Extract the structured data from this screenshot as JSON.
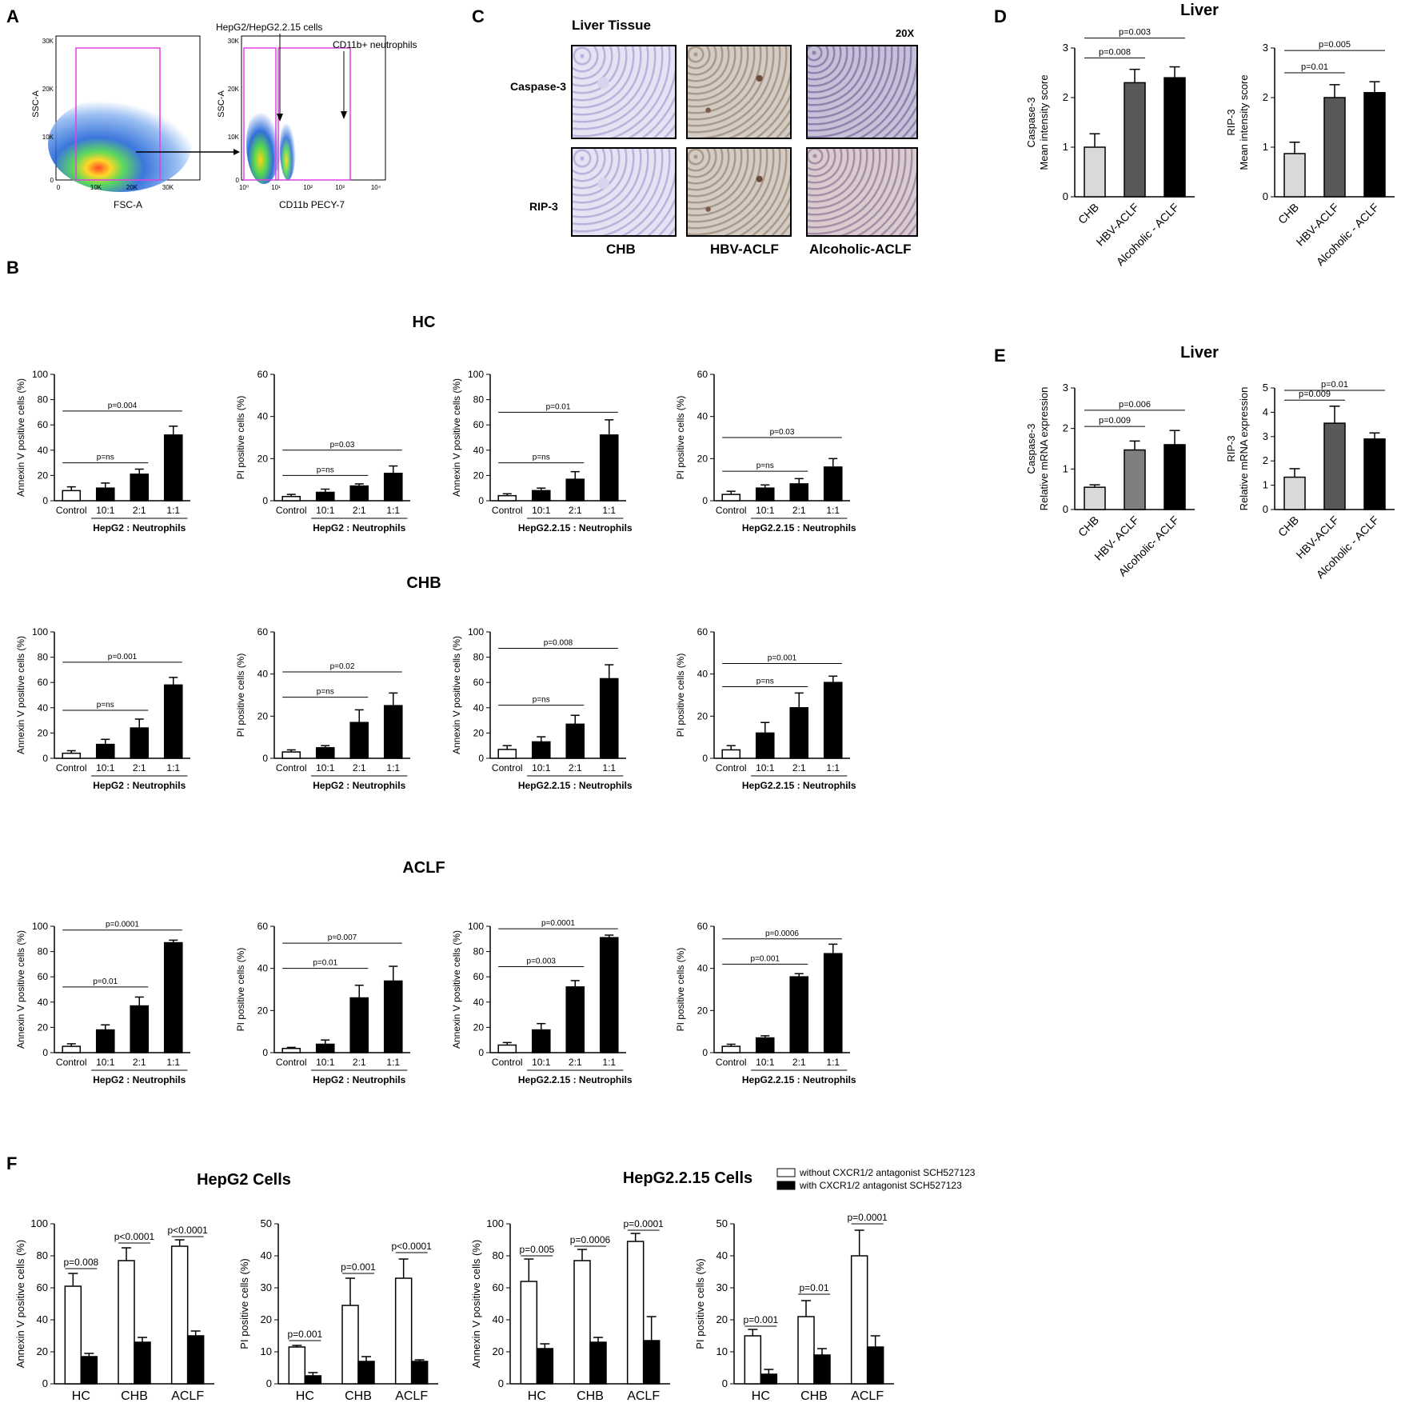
{
  "panels": {
    "A": "A",
    "B": "B",
    "C": "C",
    "D": "D",
    "E": "E",
    "F": "F"
  },
  "flow": {
    "left_y": "SSC-A",
    "left_x": "FSC-A",
    "left_yticks": [
      "30K",
      "20K",
      "10K",
      "0"
    ],
    "left_xticks": [
      "0",
      "10K",
      "20K",
      "30K"
    ],
    "right_y": "SSC-A",
    "right_x": "CD11b PECY-7",
    "right_yticks": [
      "30K",
      "20K",
      "10K",
      "0"
    ],
    "right_xticks": [
      "10⁰",
      "10¹",
      "10²",
      "10³",
      "10⁴"
    ],
    "label_hepg2": "HepG2/HepG2.2.15 cells",
    "label_neut": "CD11b+ neutrophils"
  },
  "histo": {
    "title": "Liver Tissue",
    "mag": "20X",
    "rows": [
      "Caspase-3",
      "RIP-3"
    ],
    "cols": [
      "CHB",
      "HBV-ACLF",
      "Alcoholic-ACLF"
    ]
  },
  "titles": {
    "D": "Liver",
    "E": "Liver",
    "HC": "HC",
    "CHB": "CHB",
    "ACLF": "ACLF",
    "F_hepg2": "HepG2 Cells",
    "F_hepg215": "HepG2.2.15 Cells"
  },
  "legendF": {
    "without": "without CXCR1/2 antagonist SCH527123",
    "with": "with CXCR1/2 antagonist SCH527123"
  },
  "chart_data": [
    {
      "id": "D1",
      "type": "bar",
      "categories": [
        "CHB",
        "HBV-ACLF",
        "Alcoholic - ACLF"
      ],
      "values": [
        1.0,
        2.3,
        2.4
      ],
      "errors": [
        0.27,
        0.27,
        0.22
      ],
      "colors": [
        "#d9d9d9",
        "#595959",
        "#000000"
      ],
      "ylabel": [
        "Caspase-3",
        "Mean intensity score"
      ],
      "ylim": [
        0,
        3
      ],
      "yticks": [
        0,
        1,
        2,
        3
      ],
      "sig": [
        {
          "a": 0,
          "b": 1,
          "y": 2.8,
          "label": "p=0.008"
        },
        {
          "a": 0,
          "b": 2,
          "y": 3.2,
          "label": "p=0.003"
        }
      ]
    },
    {
      "id": "D2",
      "type": "bar",
      "categories": [
        "CHB",
        "HBV-ACLF",
        "Alcoholic - ACLF"
      ],
      "values": [
        0.87,
        2.0,
        2.1
      ],
      "errors": [
        0.23,
        0.26,
        0.22
      ],
      "colors": [
        "#d9d9d9",
        "#595959",
        "#000000"
      ],
      "ylabel": [
        "RIP-3",
        "Mean intensity score"
      ],
      "ylim": [
        0,
        3
      ],
      "yticks": [
        0,
        1,
        2,
        3
      ],
      "sig": [
        {
          "a": 0,
          "b": 1,
          "y": 2.5,
          "label": "p=0.01"
        },
        {
          "a": 0,
          "b": 2,
          "y": 2.95,
          "label": "p=0.005"
        }
      ]
    },
    {
      "id": "E1",
      "type": "bar",
      "categories": [
        "CHB",
        "HBV- ACLF",
        "Alcoholic- ACLF"
      ],
      "values": [
        0.55,
        1.47,
        1.6
      ],
      "errors": [
        0.06,
        0.22,
        0.35
      ],
      "colors": [
        "#d9d9d9",
        "#7f7f7f",
        "#000000"
      ],
      "ylabel": [
        "Caspase-3",
        "Relative mRNA expression"
      ],
      "ylim": [
        0,
        3
      ],
      "yticks": [
        0,
        1,
        2,
        3
      ],
      "sig": [
        {
          "a": 0,
          "b": 1,
          "y": 2.05,
          "label": "p=0.009"
        },
        {
          "a": 0,
          "b": 2,
          "y": 2.45,
          "label": "p=0.006"
        }
      ]
    },
    {
      "id": "E2",
      "type": "bar",
      "categories": [
        "CHB",
        "HBV-ACLF",
        "Alcoholic - ACLF"
      ],
      "values": [
        1.33,
        3.55,
        2.9
      ],
      "errors": [
        0.35,
        0.7,
        0.25
      ],
      "colors": [
        "#d9d9d9",
        "#595959",
        "#000000"
      ],
      "ylabel": [
        "RIP-3",
        "Relative mRNA expression"
      ],
      "ylim": [
        0,
        5
      ],
      "yticks": [
        0,
        1,
        2,
        3,
        4,
        5
      ],
      "sig": [
        {
          "a": 0,
          "b": 1,
          "y": 4.5,
          "label": "p=0.009"
        },
        {
          "a": 0,
          "b": 2,
          "y": 4.9,
          "label": "p=0.01"
        }
      ]
    },
    {
      "id": "HC1",
      "type": "bar",
      "categories": [
        "Control",
        "10:1",
        "2:1",
        "1:1"
      ],
      "values": [
        8,
        10,
        21,
        52
      ],
      "errors": [
        3,
        4,
        4,
        7
      ],
      "ylabel": [
        "Annexin V positive cells (%)"
      ],
      "ylim": [
        0,
        100
      ],
      "yticks": [
        0,
        20,
        40,
        60,
        80,
        100
      ],
      "group": "HepG2 : Neutrophils",
      "sig": [
        {
          "a": 0,
          "b": 2,
          "y": 30,
          "label": "p=ns"
        },
        {
          "a": 0,
          "b": 3,
          "y": 71,
          "label": "p=0.004"
        }
      ]
    },
    {
      "id": "HC2",
      "type": "bar",
      "categories": [
        "Control",
        "10:1",
        "2:1",
        "1:1"
      ],
      "values": [
        2,
        4,
        7,
        13
      ],
      "errors": [
        1,
        1.5,
        1,
        3.5
      ],
      "ylabel": [
        "PI positive cells (%)"
      ],
      "ylim": [
        0,
        60
      ],
      "yticks": [
        0,
        20,
        40,
        60
      ],
      "group": "HepG2 : Neutrophils",
      "sig": [
        {
          "a": 0,
          "b": 2,
          "y": 12,
          "label": "p=ns"
        },
        {
          "a": 0,
          "b": 3,
          "y": 24,
          "label": "p=0.03"
        }
      ]
    },
    {
      "id": "HC3",
      "type": "bar",
      "categories": [
        "Control",
        "10:1",
        "2:1",
        "1:1"
      ],
      "values": [
        4,
        8,
        17,
        52
      ],
      "errors": [
        1.5,
        2,
        6,
        12
      ],
      "ylabel": [
        "Annexin V positive cells (%)"
      ],
      "ylim": [
        0,
        100
      ],
      "yticks": [
        0,
        20,
        40,
        60,
        80,
        100
      ],
      "group": "HepG2.2.15 : Neutrophils",
      "sig": [
        {
          "a": 0,
          "b": 2,
          "y": 30,
          "label": "p=ns"
        },
        {
          "a": 0,
          "b": 3,
          "y": 70,
          "label": "p=0.01"
        }
      ]
    },
    {
      "id": "HC4",
      "type": "bar",
      "categories": [
        "Control",
        "10:1",
        "2:1",
        "1:1"
      ],
      "values": [
        3,
        6,
        8,
        16
      ],
      "errors": [
        1.5,
        1.5,
        2.5,
        4
      ],
      "ylabel": [
        "PI positive cells (%)"
      ],
      "ylim": [
        0,
        60
      ],
      "yticks": [
        0,
        20,
        40,
        60
      ],
      "group": "HepG2.2.15 : Neutrophils",
      "sig": [
        {
          "a": 0,
          "b": 2,
          "y": 14,
          "label": "p=ns"
        },
        {
          "a": 0,
          "b": 3,
          "y": 30,
          "label": "p=0.03"
        }
      ]
    },
    {
      "id": "CHB1",
      "type": "bar",
      "categories": [
        "Control",
        "10:1",
        "2:1",
        "1:1"
      ],
      "values": [
        4,
        11,
        24,
        58
      ],
      "errors": [
        2,
        4,
        7,
        6
      ],
      "ylabel": [
        "Annexin V positive cells (%)"
      ],
      "ylim": [
        0,
        100
      ],
      "yticks": [
        0,
        20,
        40,
        60,
        80,
        100
      ],
      "group": "HepG2 : Neutrophils",
      "sig": [
        {
          "a": 0,
          "b": 2,
          "y": 38,
          "label": "p=ns"
        },
        {
          "a": 0,
          "b": 3,
          "y": 76,
          "label": "p=0.001"
        }
      ]
    },
    {
      "id": "CHB2",
      "type": "bar",
      "categories": [
        "Control",
        "10:1",
        "2:1",
        "1:1"
      ],
      "values": [
        3,
        5,
        17,
        25
      ],
      "errors": [
        1,
        1,
        6,
        6
      ],
      "ylabel": [
        "PI positive cells (%)"
      ],
      "ylim": [
        0,
        60
      ],
      "yticks": [
        0,
        20,
        40,
        60
      ],
      "group": "HepG2 : Neutrophils",
      "sig": [
        {
          "a": 0,
          "b": 2,
          "y": 29,
          "label": "p=ns"
        },
        {
          "a": 0,
          "b": 3,
          "y": 41,
          "label": "p=0.02"
        }
      ]
    },
    {
      "id": "CHB3",
      "type": "bar",
      "categories": [
        "Control",
        "10:1",
        "2:1",
        "1:1"
      ],
      "values": [
        7,
        13,
        27,
        63
      ],
      "errors": [
        3,
        4,
        7,
        11
      ],
      "ylabel": [
        "Annexin V positive cells (%)"
      ],
      "ylim": [
        0,
        100
      ],
      "yticks": [
        0,
        20,
        40,
        60,
        80,
        100
      ],
      "group": "HepG2.2.15 : Neutrophils",
      "sig": [
        {
          "a": 0,
          "b": 2,
          "y": 42,
          "label": "p=ns"
        },
        {
          "a": 0,
          "b": 3,
          "y": 87,
          "label": "p=0.008"
        }
      ]
    },
    {
      "id": "CHB4",
      "type": "bar",
      "categories": [
        "Control",
        "10:1",
        "2:1",
        "1:1"
      ],
      "values": [
        4,
        12,
        24,
        36
      ],
      "errors": [
        2,
        5,
        7,
        3
      ],
      "ylabel": [
        "PI positive cells (%)"
      ],
      "ylim": [
        0,
        60
      ],
      "yticks": [
        0,
        20,
        40,
        60
      ],
      "group": "HepG2.2.15 : Neutrophils",
      "sig": [
        {
          "a": 0,
          "b": 2,
          "y": 34,
          "label": "p=ns"
        },
        {
          "a": 0,
          "b": 3,
          "y": 45,
          "label": "p=0.001"
        }
      ]
    },
    {
      "id": "ACLF1",
      "type": "bar",
      "categories": [
        "Control",
        "10:1",
        "2:1",
        "1:1"
      ],
      "values": [
        5,
        18,
        37,
        87
      ],
      "errors": [
        2,
        4,
        7,
        2
      ],
      "ylabel": [
        "Annexin V positive cells (%)"
      ],
      "ylim": [
        0,
        100
      ],
      "yticks": [
        0,
        20,
        40,
        60,
        80,
        100
      ],
      "group": "HepG2 : Neutrophils",
      "sig": [
        {
          "a": 0,
          "b": 2,
          "y": 52,
          "label": "p=0.01"
        },
        {
          "a": 0,
          "b": 3,
          "y": 97,
          "label": "p=0.0001"
        }
      ]
    },
    {
      "id": "ACLF2",
      "type": "bar",
      "categories": [
        "Control",
        "10:1",
        "2:1",
        "1:1"
      ],
      "values": [
        2,
        4,
        26,
        34
      ],
      "errors": [
        0.5,
        2,
        6,
        7
      ],
      "ylabel": [
        "PI positive cells (%)"
      ],
      "ylim": [
        0,
        60
      ],
      "yticks": [
        0,
        20,
        40,
        60
      ],
      "group": "HepG2 : Neutrophils",
      "sig": [
        {
          "a": 0,
          "b": 2,
          "y": 40,
          "label": "p=0.01"
        },
        {
          "a": 0,
          "b": 3,
          "y": 52,
          "label": "p=0.007"
        }
      ]
    },
    {
      "id": "ACLF3",
      "type": "bar",
      "categories": [
        "Control",
        "10:1",
        "2:1",
        "1:1"
      ],
      "values": [
        6,
        18,
        52,
        91
      ],
      "errors": [
        2,
        5,
        5,
        2
      ],
      "ylabel": [
        "Annexin V positive cells (%)"
      ],
      "ylim": [
        0,
        100
      ],
      "yticks": [
        0,
        20,
        40,
        60,
        80,
        100
      ],
      "group": "HepG2.2.15 : Neutrophils",
      "sig": [
        {
          "a": 0,
          "b": 2,
          "y": 68,
          "label": "p=0.003"
        },
        {
          "a": 0,
          "b": 3,
          "y": 98,
          "label": "p=0.0001"
        }
      ]
    },
    {
      "id": "ACLF4",
      "type": "bar",
      "categories": [
        "Control",
        "10:1",
        "2:1",
        "1:1"
      ],
      "values": [
        3,
        7,
        36,
        47
      ],
      "errors": [
        1,
        1,
        1.5,
        4.5
      ],
      "ylabel": [
        "PI positive cells (%)"
      ],
      "ylim": [
        0,
        60
      ],
      "yticks": [
        0,
        20,
        40,
        60
      ],
      "group": "HepG2.2.15 : Neutrophils",
      "sig": [
        {
          "a": 0,
          "b": 2,
          "y": 42,
          "label": "p=0.001"
        },
        {
          "a": 0,
          "b": 3,
          "y": 54,
          "label": "p=0.0006"
        }
      ]
    },
    {
      "id": "F1",
      "type": "bar-grouped",
      "categories": [
        "HC",
        "CHB",
        "ACLF"
      ],
      "series": [
        {
          "name": "without CXCR1/2 antagonist SCH527123",
          "values": [
            61,
            77,
            86
          ],
          "errors": [
            8,
            8,
            4
          ]
        },
        {
          "name": "with CXCR1/2 antagonist SCH527123",
          "values": [
            17,
            26,
            30
          ],
          "errors": [
            2,
            3,
            3
          ]
        }
      ],
      "ylabel": [
        "Annexin V positive  cells (%)"
      ],
      "ylim": [
        0,
        100
      ],
      "yticks": [
        0,
        20,
        40,
        60,
        80,
        100
      ],
      "sig": [
        {
          "g": 0,
          "y": 72,
          "label": "p=0.008"
        },
        {
          "g": 1,
          "y": 88,
          "label": "p<0.0001"
        },
        {
          "g": 2,
          "y": 92,
          "label": "p<0.0001"
        }
      ]
    },
    {
      "id": "F2",
      "type": "bar-grouped",
      "categories": [
        "HC",
        "CHB",
        "ACLF"
      ],
      "series": [
        {
          "name": "without CXCR1/2 antagonist SCH527123",
          "values": [
            11.5,
            24.5,
            33
          ],
          "errors": [
            0.5,
            8.5,
            6
          ]
        },
        {
          "name": "with CXCR1/2 antagonist SCH527123",
          "values": [
            2.5,
            7,
            7
          ],
          "errors": [
            1,
            1.5,
            0.5
          ]
        }
      ],
      "ylabel": [
        "PI positive cells (%)"
      ],
      "ylim": [
        0,
        50
      ],
      "yticks": [
        0,
        10,
        20,
        30,
        40,
        50
      ],
      "sig": [
        {
          "g": 0,
          "y": 13.5,
          "label": "p=0.001"
        },
        {
          "g": 1,
          "y": 34.5,
          "label": "p=0.001"
        },
        {
          "g": 2,
          "y": 41,
          "label": "p<0.0001"
        }
      ]
    },
    {
      "id": "F3",
      "type": "bar-grouped",
      "categories": [
        "HC",
        "CHB",
        "ACLF"
      ],
      "series": [
        {
          "name": "without CXCR1/2 antagonist SCH527123",
          "values": [
            64,
            77,
            89
          ],
          "errors": [
            14,
            7,
            5
          ]
        },
        {
          "name": "with CXCR1/2 antagonist SCH527123",
          "values": [
            22,
            26,
            27
          ],
          "errors": [
            3,
            3,
            15
          ]
        }
      ],
      "ylabel": [
        "Annexin V positive  cells (%)"
      ],
      "ylim": [
        0,
        100
      ],
      "yticks": [
        0,
        20,
        40,
        60,
        80,
        100
      ],
      "sig": [
        {
          "g": 0,
          "y": 80,
          "label": "p=0.005"
        },
        {
          "g": 1,
          "y": 86,
          "label": "p=0.0006"
        },
        {
          "g": 2,
          "y": 96,
          "label": "p=0.0001"
        }
      ]
    },
    {
      "id": "F4",
      "type": "bar-grouped",
      "categories": [
        "HC",
        "CHB",
        "ACLF"
      ],
      "series": [
        {
          "name": "without CXCR1/2 antagonist SCH527123",
          "values": [
            15,
            21,
            40
          ],
          "errors": [
            2,
            5,
            8
          ]
        },
        {
          "name": "with CXCR1/2 antagonist SCH527123",
          "values": [
            3,
            9,
            11.5
          ],
          "errors": [
            1.5,
            2,
            3.5
          ]
        }
      ],
      "ylabel": [
        "PI positive cells (%)"
      ],
      "ylim": [
        0,
        50
      ],
      "yticks": [
        0,
        10,
        20,
        30,
        40,
        50
      ],
      "sig": [
        {
          "g": 0,
          "y": 18,
          "label": "p=0.001"
        },
        {
          "g": 1,
          "y": 28,
          "label": "p=0.01"
        },
        {
          "g": 2,
          "y": 50,
          "label": "p=0.0001"
        }
      ]
    }
  ]
}
